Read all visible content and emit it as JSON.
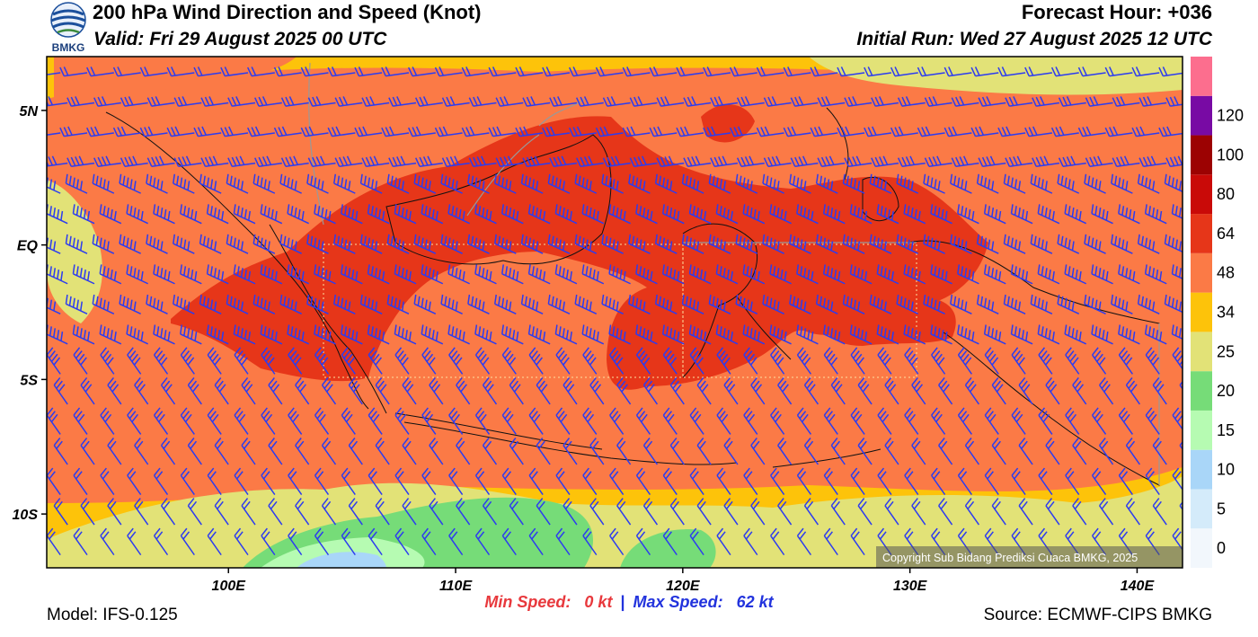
{
  "header": {
    "logo_text": "BMKG",
    "title": "200 hPa Wind Direction and Speed (Knot)",
    "valid": "Valid: Fri 29 August 2025 00 UTC",
    "forecast_hour": "Forecast Hour: +036",
    "initial_run": "Initial Run: Wed 27 August 2025 12 UTC"
  },
  "map": {
    "lon_range": [
      92,
      142
    ],
    "lat_range": [
      -12,
      7
    ],
    "lon_ticks": [
      "100E",
      "110E",
      "120E",
      "130E",
      "140E"
    ],
    "lon_tick_values": [
      100,
      110,
      120,
      130,
      140
    ],
    "lat_ticks": [
      "5N",
      "EQ",
      "5S",
      "10S"
    ],
    "lat_tick_values": [
      5,
      0,
      -5,
      -10
    ],
    "copyright": "Copyright Sub Bidang Prediksi Cuaca BMKG, 2025",
    "barb_color": "#2b3cf0",
    "wind_regime": "predominantly easterly winds, strongest (48-64 kt) along the equatorial belt 6S-4N"
  },
  "colorbar": {
    "labels": [
      "0",
      "5",
      "10",
      "15",
      "20",
      "25",
      "34",
      "48",
      "64",
      "80",
      "100",
      "120"
    ],
    "colors": [
      "#f2f7fc",
      "#d4ebfa",
      "#a9d6f8",
      "#b6fbb2",
      "#76dc78",
      "#e2e277",
      "#fdc30a",
      "#fb7a46",
      "#e63619",
      "#c90a08",
      "#9c0202",
      "#780aa4",
      "#fc6e8e"
    ]
  },
  "footer": {
    "model": "Model: IFS-0.125",
    "min_label": "Min Speed:",
    "min_value": "0 kt",
    "separator": "|",
    "max_label": "Max Speed:",
    "max_value": "62 kt",
    "source": "Source: ECMWF-CIPS BMKG"
  }
}
